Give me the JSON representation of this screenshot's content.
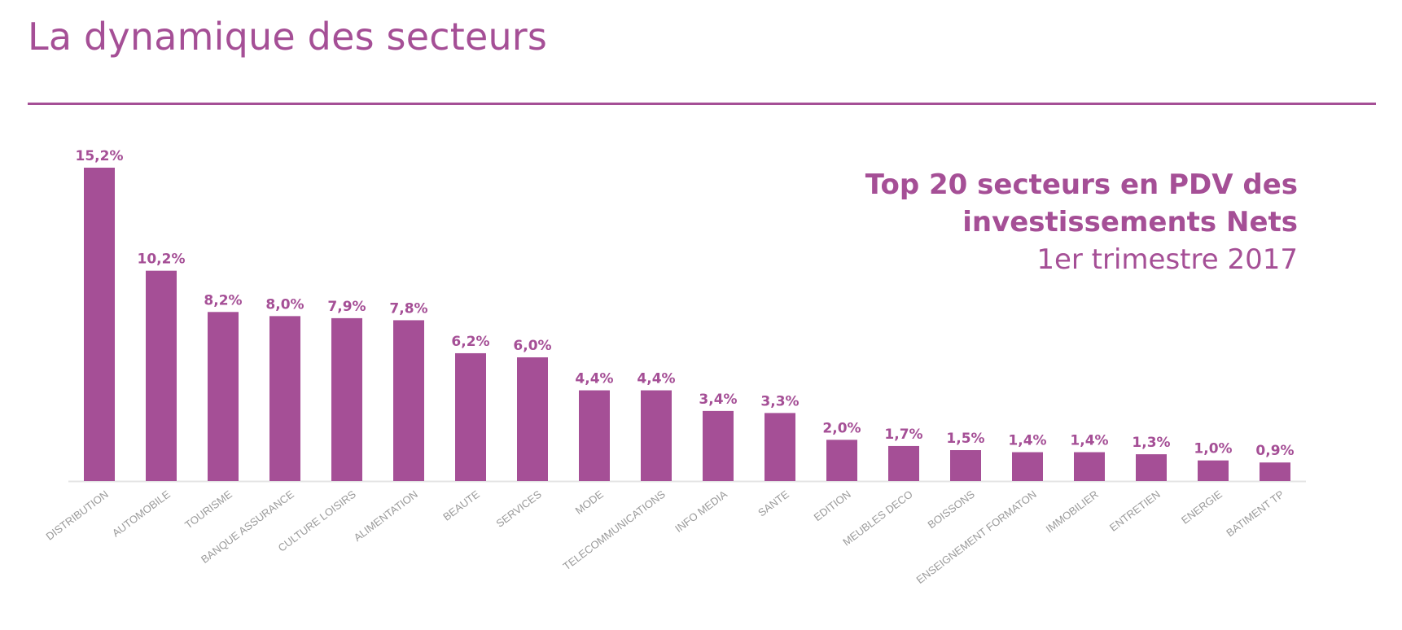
{
  "page": {
    "title": "La dynamique des secteurs"
  },
  "colors": {
    "accent": "#a54f96",
    "bar": "#a54f96",
    "axis": "#e4e4e4",
    "tick_label": "#9a9a9a"
  },
  "chart_data": {
    "type": "bar",
    "title_lines": [
      "Top 20 secteurs en PDV des",
      "investissements Nets"
    ],
    "subtitle": "1er trimestre 2017",
    "xlabel": "",
    "ylabel": "",
    "ylim": [
      0,
      15.2
    ],
    "grid": false,
    "legend": "none",
    "unit": "%",
    "categories": [
      "DISTRIBUTION",
      "AUTOMOBILE",
      "TOURISME",
      "BANQUE ASSURANCE",
      "CULTURE LOISIRS",
      "ALIMENTATION",
      "BEAUTE",
      "SERVICES",
      "MODE",
      "TELECOMMUNICATIONS",
      "INFO MEDIA",
      "SANTE",
      "EDITION",
      "MEUBLES DECO",
      "BOISSONS",
      "ENSEIGNEMENT FORMATON",
      "IMMOBILIER",
      "ENTRETIEN",
      "ENERGIE",
      "BATIMENT TP"
    ],
    "values": [
      15.2,
      10.2,
      8.2,
      8.0,
      7.9,
      7.8,
      6.2,
      6.0,
      4.4,
      4.4,
      3.4,
      3.3,
      2.0,
      1.7,
      1.5,
      1.4,
      1.4,
      1.3,
      1.0,
      0.9
    ],
    "value_labels": [
      "15,2%",
      "10,2%",
      "8,2%",
      "8,0%",
      "7,9%",
      "7,8%",
      "6,2%",
      "6,0%",
      "4,4%",
      "4,4%",
      "3,4%",
      "3,3%",
      "2,0%",
      "1,7%",
      "1,5%",
      "1,4%",
      "1,4%",
      "1,3%",
      "1,0%",
      "0,9%"
    ]
  }
}
